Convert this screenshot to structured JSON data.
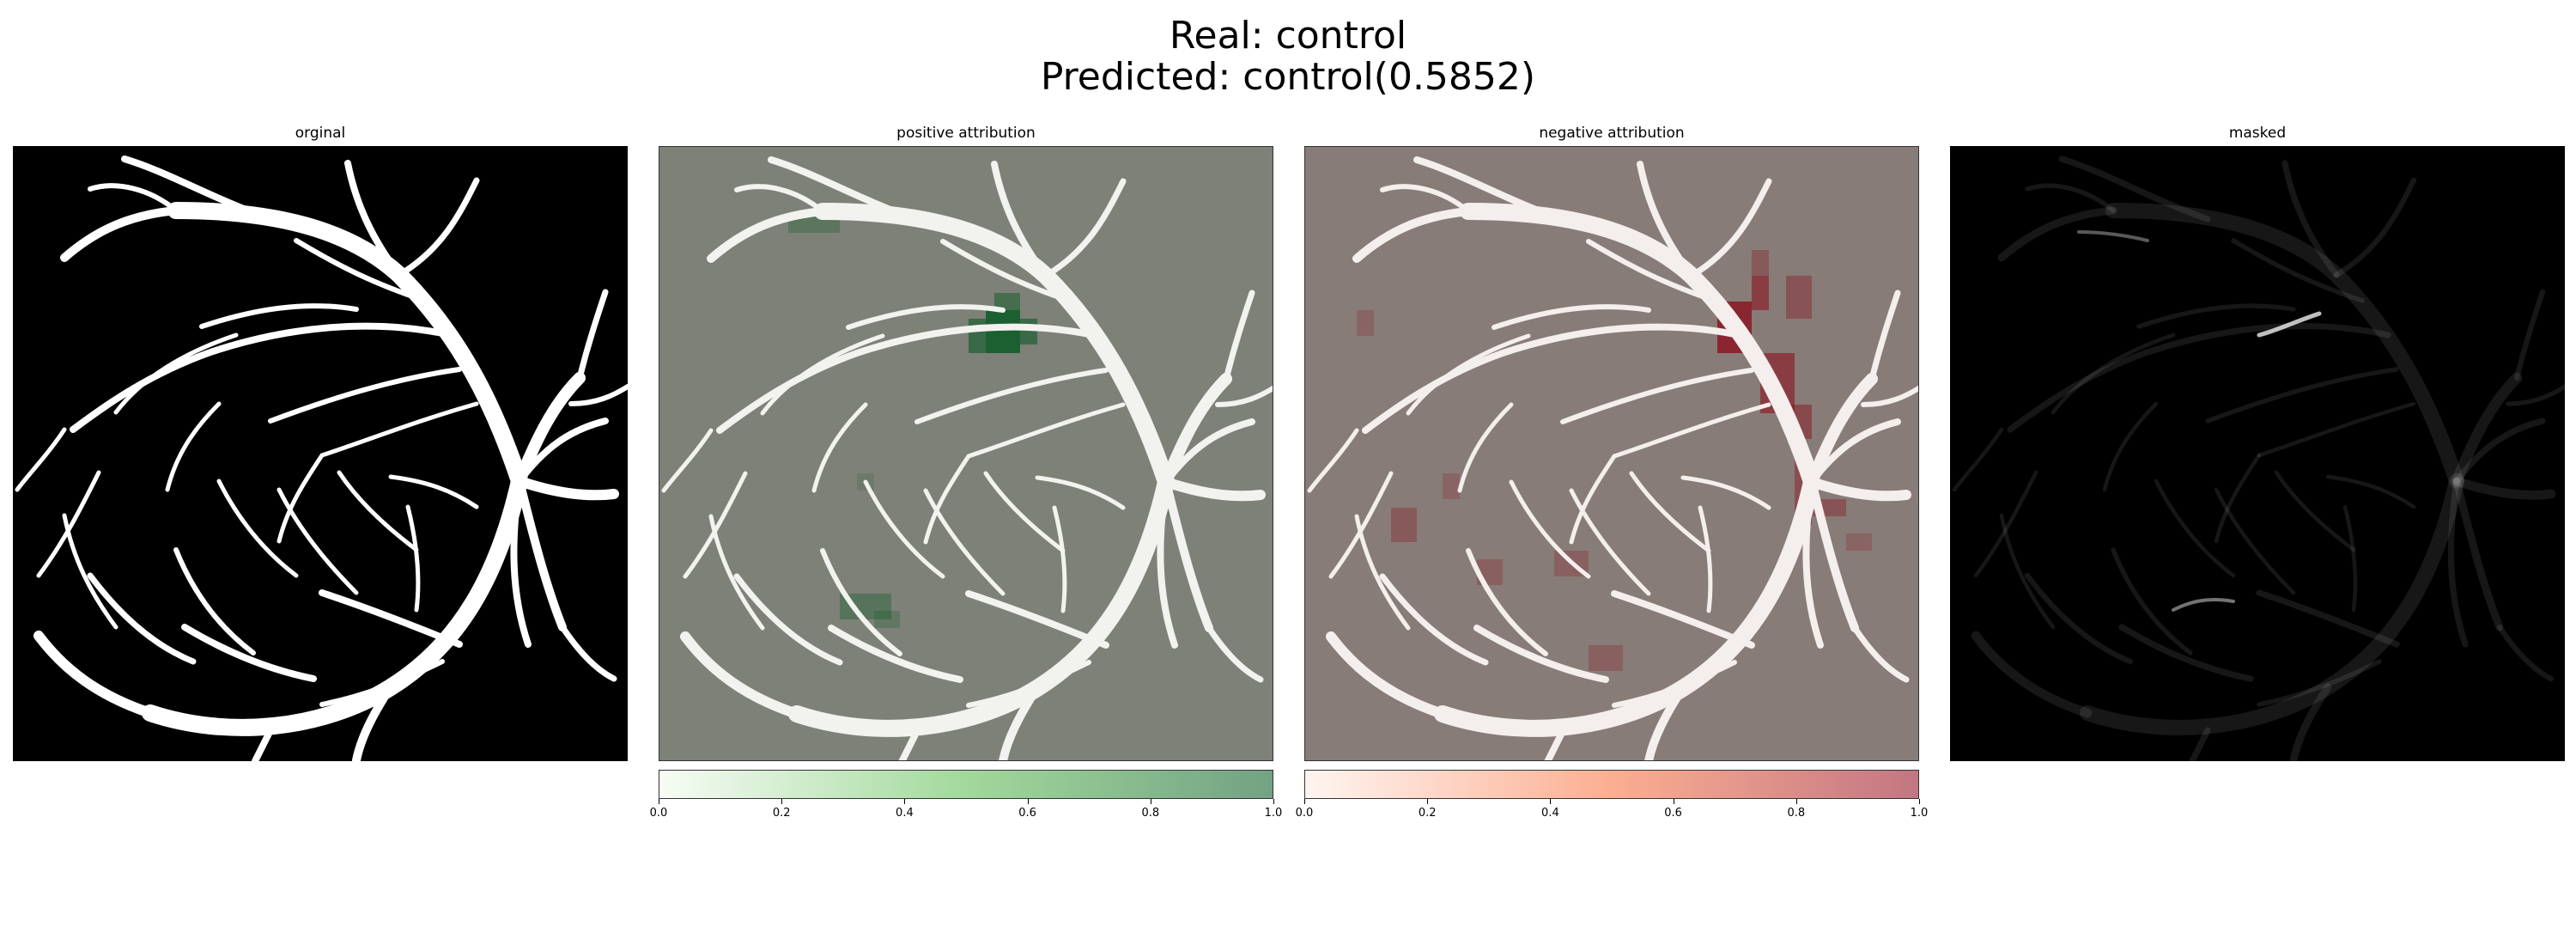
{
  "figure": {
    "title_line1": "Real: control",
    "title_line2": "Predicted: control(0.5852)"
  },
  "panels": [
    {
      "id": "original",
      "title": "orginal",
      "background": "#000000"
    },
    {
      "id": "positive",
      "title": "positive attribution",
      "background": "#7e8178"
    },
    {
      "id": "negative",
      "title": "negative attribution",
      "background": "#877c77"
    },
    {
      "id": "masked",
      "title": "masked",
      "background": "#000000"
    }
  ],
  "colorbars": [
    {
      "panel": "positive",
      "colormap": "Greens",
      "start_color": "#f7fcf5",
      "mid_color": "#a1d99b",
      "end_color": "#72a283",
      "ticks": [
        "0.0",
        "0.2",
        "0.4",
        "0.6",
        "0.8",
        "1.0"
      ]
    },
    {
      "panel": "negative",
      "colormap": "Reds",
      "start_color": "#fff5f0",
      "mid_color": "#fcae91",
      "end_color": "#c27682",
      "ticks": [
        "0.0",
        "0.2",
        "0.4",
        "0.6",
        "0.8",
        "1.0"
      ]
    }
  ],
  "chart_data": {
    "type": "heatmap",
    "panel_titles": [
      "orginal",
      "positive attribution",
      "negative attribution",
      "masked"
    ],
    "real_label": "control",
    "predicted_label": "control",
    "predicted_probability": 0.5852,
    "colorbar_range": [
      0.0,
      1.0
    ],
    "colorbar_ticks": [
      0.0,
      0.2,
      0.4,
      0.6,
      0.8,
      1.0
    ]
  }
}
